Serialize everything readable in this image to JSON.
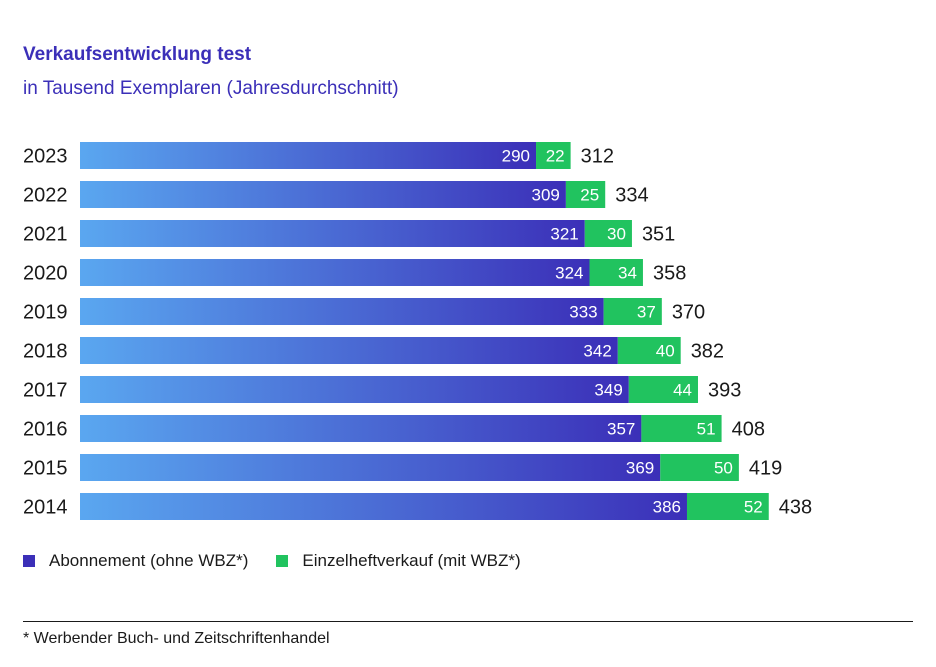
{
  "colors": {
    "abo_dark": "#3b2fb8",
    "abo_light": "#5aa7f0",
    "einzel": "#21c35f",
    "text": "#1a1a1a"
  },
  "chart_data": {
    "type": "bar",
    "orientation": "horizontal",
    "stacked": true,
    "title": "Verkaufsentwicklung test",
    "subtitle": "in Tausend Exemplaren (Jahresdurchschnitt)",
    "categories": [
      "2023",
      "2022",
      "2021",
      "2020",
      "2019",
      "2018",
      "2017",
      "2016",
      "2015",
      "2014"
    ],
    "series": [
      {
        "name": "Abonnement (ohne WBZ*)",
        "values": [
          290,
          309,
          321,
          324,
          333,
          342,
          349,
          357,
          369,
          386
        ]
      },
      {
        "name": "Einzelheftverkauf (mit WBZ*)",
        "values": [
          22,
          25,
          30,
          34,
          37,
          40,
          44,
          51,
          50,
          52
        ]
      }
    ],
    "totals": [
      312,
      334,
      351,
      358,
      370,
      382,
      393,
      408,
      419,
      438
    ],
    "legend_position": "bottom-left",
    "grid": false
  },
  "footnote": "* Werbender Buch- und Zeitschriftenhandel"
}
